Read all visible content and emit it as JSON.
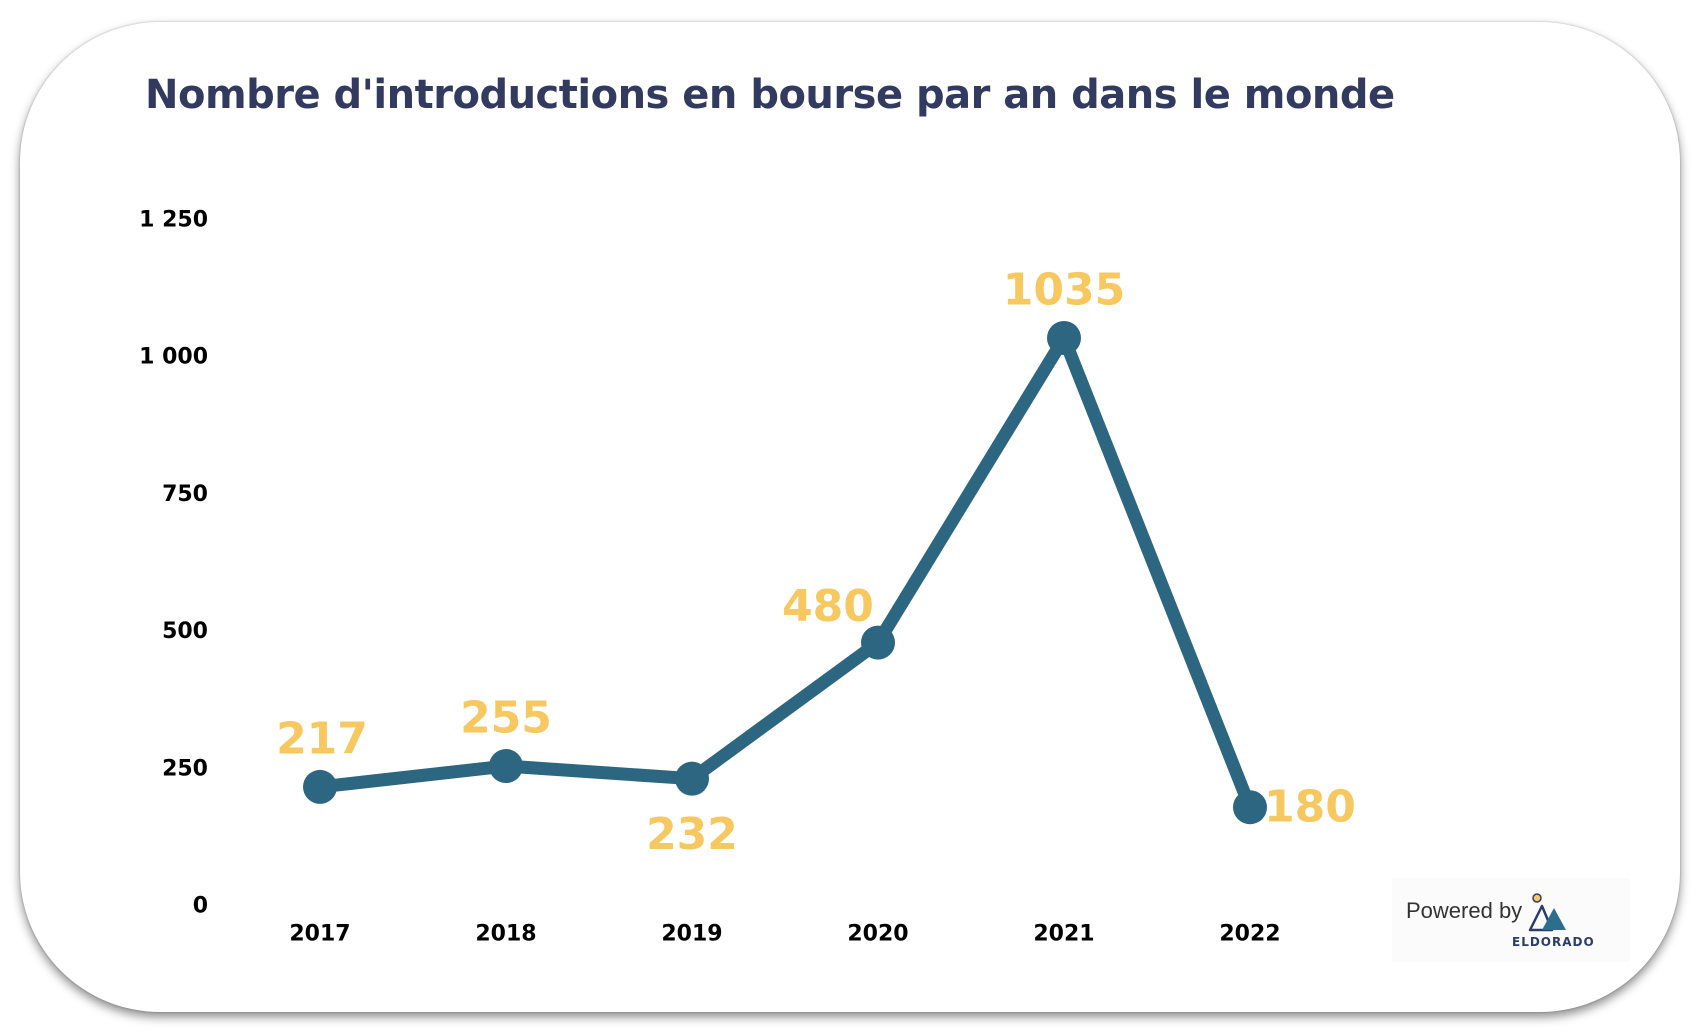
{
  "title": "Nombre d'introductions en bourse par an dans le monde",
  "chart_data": {
    "type": "line",
    "title": "Nombre d'introductions en bourse par an dans le monde",
    "xlabel": "",
    "ylabel": "",
    "categories": [
      "2017",
      "2018",
      "2019",
      "2020",
      "2021",
      "2022"
    ],
    "series": [
      {
        "values": [
          217,
          255,
          232,
          480,
          1035,
          180
        ]
      }
    ],
    "data_labels": [
      "217",
      "255",
      "232",
      "480",
      "1035",
      "180"
    ],
    "ylim": [
      0,
      1250
    ],
    "y_ticks": [
      0,
      250,
      500,
      750,
      1000,
      1250
    ],
    "y_tick_labels": [
      "0",
      "250",
      "500",
      "750",
      "1 000",
      "1 250"
    ],
    "grid": false,
    "legend": "none",
    "colors": {
      "line": "#2d6680",
      "label": "#f6c85f",
      "title": "#323a5f",
      "axis_text": "#000000"
    }
  },
  "footer": {
    "powered_by": "Powered by",
    "brand": "ELDORADO",
    "logo_icon": "mountain-sun-icon"
  }
}
